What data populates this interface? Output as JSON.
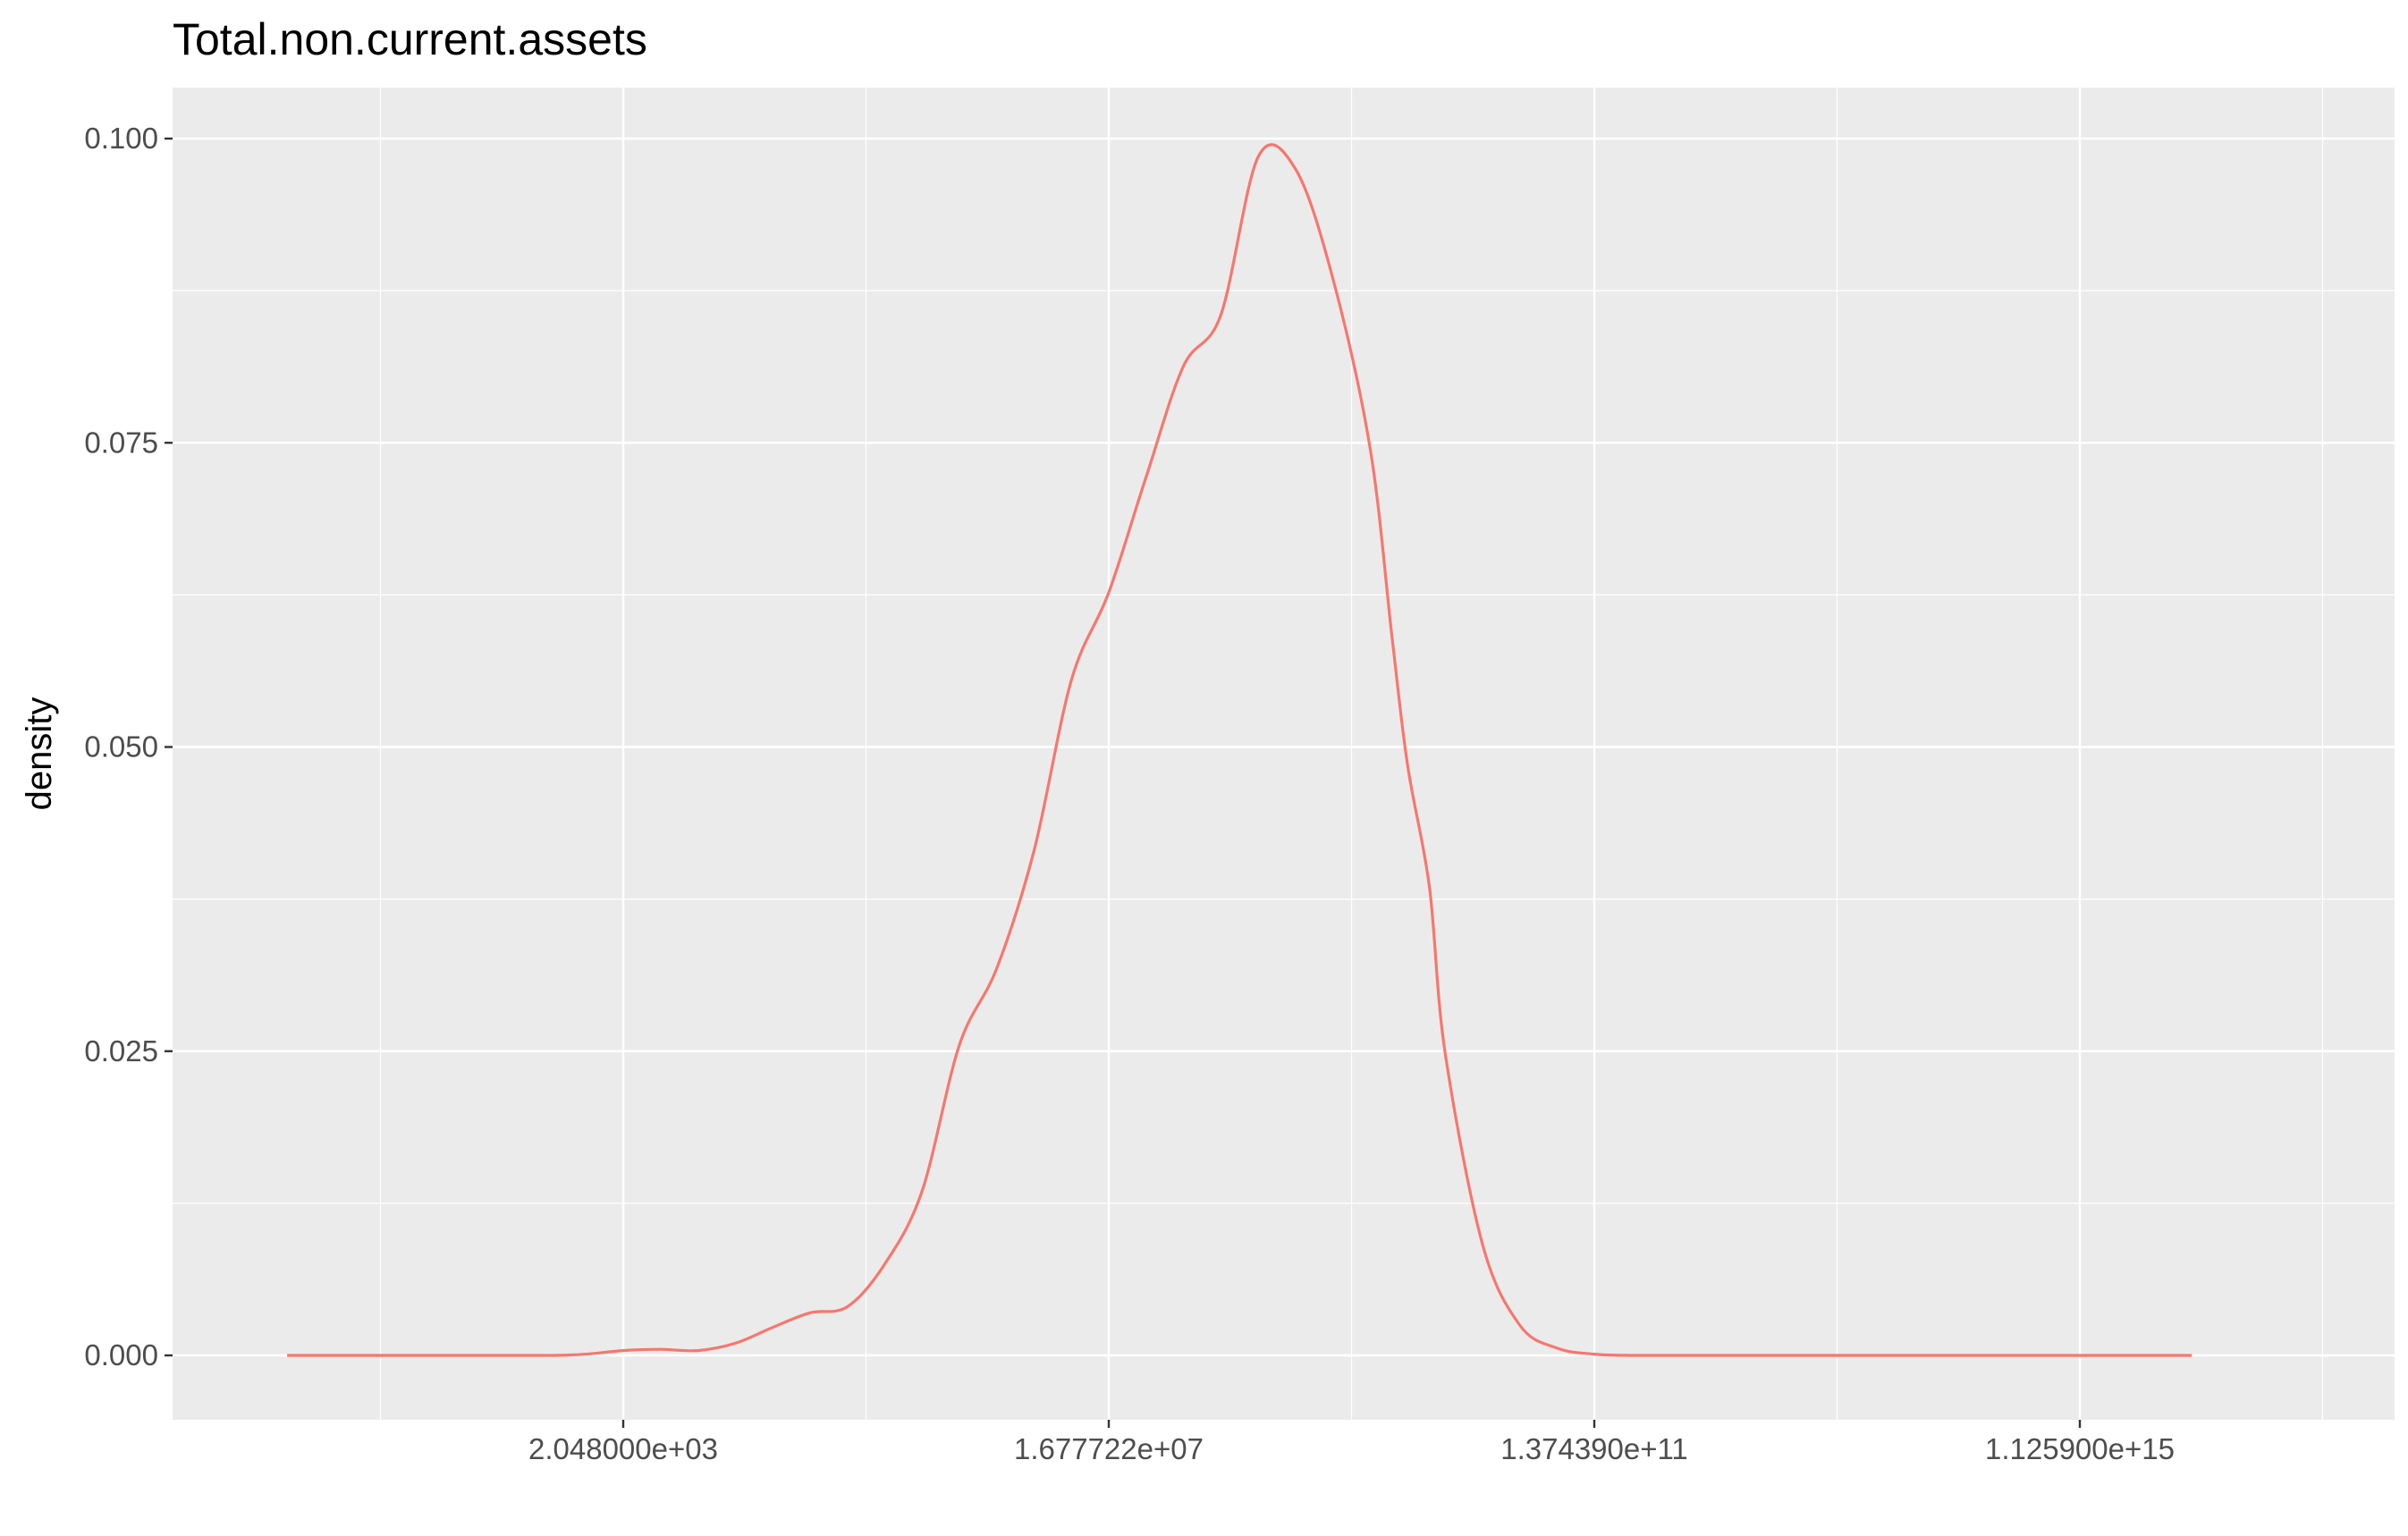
{
  "chart_data": {
    "type": "line",
    "title": "Total.non.current.assets",
    "xlabel": "",
    "ylabel": "density",
    "x_scale": "log2",
    "x_ticks": [
      {
        "value": 2048,
        "label": "2.048000e+03"
      },
      {
        "value": 16777216,
        "label": "1.677722e+07"
      },
      {
        "value": 137439000000,
        "label": "1.374390e+11"
      },
      {
        "value": 1125900000000000,
        "label": "1.125900e+15"
      }
    ],
    "y_ticks": [
      {
        "value": 0,
        "label": "0.000"
      },
      {
        "value": 0.025,
        "label": "0.025"
      },
      {
        "value": 0.05,
        "label": "0.050"
      },
      {
        "value": 0.075,
        "label": "0.075"
      },
      {
        "value": 0.1,
        "label": "0.100"
      }
    ],
    "grid": true,
    "legend": "none",
    "series": [
      {
        "color": "#f8766d",
        "x": [
          4,
          8,
          64,
          512,
          1024,
          2048,
          4096,
          8192,
          16384,
          32768,
          65536,
          131072,
          262144,
          524288,
          1048576,
          2097152,
          4194304,
          8388608,
          16777216,
          33554432,
          67108864,
          134217728,
          268435456,
          536870912,
          1073741824,
          2147483648,
          3221225472,
          4294967296,
          6442450944,
          8589934592,
          17179869184,
          34359738368,
          68719476736,
          137438953472,
          274877906944,
          549755813888,
          1099511627776,
          2199023255552,
          8796093022208,
          140737488355328.0,
          1125900000000000.0,
          9007199254740992.0
        ],
        "y": [
          0,
          0,
          0,
          0,
          0.0001,
          0.0004,
          0.0005,
          0.0004,
          0.001,
          0.0023,
          0.0035,
          0.004,
          0.0075,
          0.0135,
          0.0255,
          0.0318,
          0.0415,
          0.0555,
          0.0627,
          0.0722,
          0.0813,
          0.0855,
          0.0985,
          0.0975,
          0.0885,
          0.0745,
          0.059,
          0.0485,
          0.0385,
          0.025,
          0.0092,
          0.0025,
          0.0006,
          0.0001,
          0,
          0,
          0,
          0,
          0,
          0,
          0,
          0
        ]
      }
    ]
  }
}
